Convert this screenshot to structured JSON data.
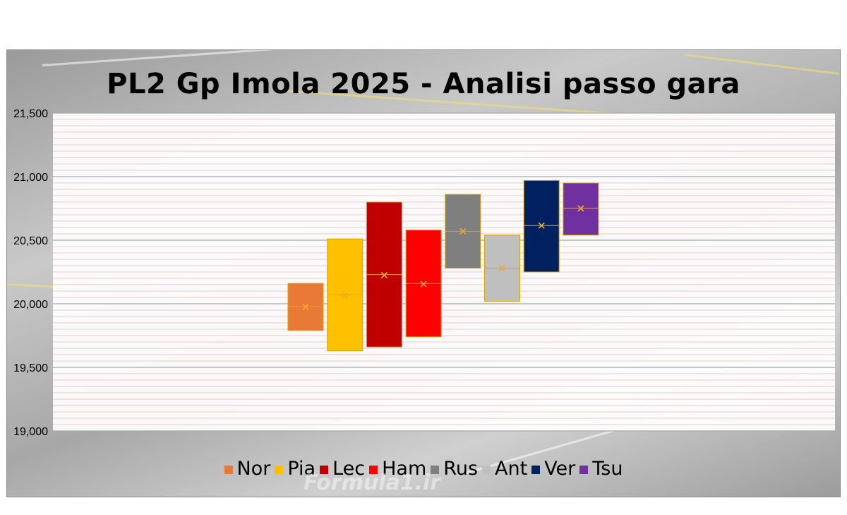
{
  "chart_data": {
    "type": "box",
    "title": "PL2 Gp Imola 2025 - Analisi passo gara",
    "ylim": [
      19000,
      21500
    ],
    "yticks": [
      19000,
      19500,
      20000,
      20500,
      21000,
      21500
    ],
    "ytick_labels": [
      "19,000",
      "19,500",
      "20,000",
      "20,500",
      "21,000",
      "21,500"
    ],
    "grid": "horizontal",
    "legend_position": "bottom",
    "series": [
      {
        "name": "Nor",
        "color": "#e87a35",
        "q1": 19790,
        "q3": 20160,
        "median": 19980,
        "mean": 19975
      },
      {
        "name": "Pia",
        "color": "#ffc000",
        "q1": 19630,
        "q3": 20510,
        "median": 20070,
        "mean": 20070
      },
      {
        "name": "Lec",
        "color": "#c00000",
        "q1": 19660,
        "q3": 20800,
        "median": 20230,
        "mean": 20225
      },
      {
        "name": "Ham",
        "color": "#ff0000",
        "q1": 19740,
        "q3": 20580,
        "median": 20160,
        "mean": 20155
      },
      {
        "name": "Rus",
        "color": "#7f7f7f",
        "q1": 20280,
        "q3": 20860,
        "median": 20570,
        "mean": 20570
      },
      {
        "name": "Ant",
        "color": "#bfbfbf",
        "q1": 20020,
        "q3": 20540,
        "median": 20280,
        "mean": 20280
      },
      {
        "name": "Ver",
        "color": "#002060",
        "q1": 20250,
        "q3": 20970,
        "median": 20615,
        "mean": 20615
      },
      {
        "name": "Tsu",
        "color": "#7030a0",
        "q1": 20540,
        "q3": 20950,
        "median": 20750,
        "mean": 20750
      }
    ]
  },
  "watermark": "Formula1.ir"
}
